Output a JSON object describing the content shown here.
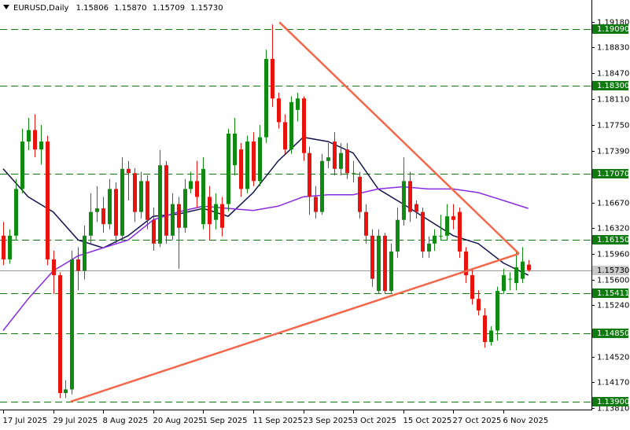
{
  "chart_data": {
    "type": "candlestick",
    "symbol": "EURUSD,Daily",
    "quote": [
      1.15806,
      {
        "value": 1.1587,
        "label": "1.15870"
      },
      1.15709,
      {
        "value": 1.1573,
        "label": "1.15730"
      }
    ],
    "bull_color": "#118a11",
    "bear_color": "#e8130c",
    "ohlc": {
      "open": [
        1.1621,
        1.1588,
        1.1621,
        1.1686,
        1.1752,
        1.1768,
        1.1741,
        1.1752,
        1.1588,
        1.1566,
        1.1402,
        1.1407,
        1.1588,
        1.1572,
        1.1621,
        1.1654,
        1.1659,
        1.1637,
        1.1686,
        1.1621,
        1.1714,
        1.1708,
        1.1654,
        1.1697,
        1.1643,
        1.161,
        1.1719,
        1.1621,
        1.1665,
        1.1632,
        1.1686,
        1.1697,
        1.1637,
        1.1675,
        1.1643,
        1.1665,
        1.1665,
        1.1719,
        1.1741,
        1.1686,
        1.1752,
        1.1697,
        1.1758,
        1.1867,
        1.1812,
        1.1779,
        1.1741,
        1.1796,
        1.1812,
        1.1736,
        1.1675,
        1.1654,
        1.1725,
        1.1752,
        1.1714,
        1.1741,
        1.1708,
        1.1703,
        1.1654,
        1.1621,
        1.1544,
        1.1621,
        1.1544,
        1.1599,
        1.1643,
        1.1697,
        1.1665,
        1.1654,
        1.1599,
        1.161,
        1.1621,
        1.1621,
        1.1648,
        1.1654,
        1.1599,
        1.1566,
        1.1533,
        1.151,
        1.1473,
        1.1489,
        1.1544,
        1.1561,
        1.1555,
        1.1561,
        1.15806
      ],
      "high": [
        1.164,
        1.163,
        1.17,
        1.177,
        1.1785,
        1.179,
        1.1775,
        1.176,
        1.16,
        1.157,
        1.142,
        1.16,
        1.1605,
        1.1635,
        1.168,
        1.169,
        1.1675,
        1.17,
        1.1695,
        1.173,
        1.1725,
        1.1715,
        1.171,
        1.1705,
        1.166,
        1.174,
        1.1725,
        1.168,
        1.1675,
        1.17,
        1.171,
        1.1725,
        1.173,
        1.169,
        1.168,
        1.1675,
        1.177,
        1.1785,
        1.175,
        1.176,
        1.1765,
        1.1775,
        1.188,
        1.1915,
        1.182,
        1.179,
        1.1815,
        1.182,
        1.1815,
        1.1745,
        1.169,
        1.1735,
        1.175,
        1.1765,
        1.175,
        1.175,
        1.1725,
        1.171,
        1.1665,
        1.163,
        1.163,
        1.1625,
        1.161,
        1.166,
        1.173,
        1.171,
        1.167,
        1.166,
        1.162,
        1.163,
        1.165,
        1.1665,
        1.1665,
        1.166,
        1.1605,
        1.1575,
        1.1545,
        1.152,
        1.1495,
        1.155,
        1.1575,
        1.157,
        1.16,
        1.1605,
        1.1587
      ],
      "low": [
        1.158,
        1.1582,
        1.1615,
        1.168,
        1.174,
        1.173,
        1.172,
        1.158,
        1.154,
        1.1395,
        1.1395,
        1.14,
        1.1545,
        1.156,
        1.161,
        1.164,
        1.1625,
        1.163,
        1.161,
        1.1615,
        1.167,
        1.164,
        1.1645,
        1.163,
        1.16,
        1.1605,
        1.161,
        1.1615,
        1.1575,
        1.1625,
        1.168,
        1.166,
        1.163,
        1.1615,
        1.163,
        1.162,
        1.1655,
        1.1705,
        1.1675,
        1.168,
        1.169,
        1.169,
        1.175,
        1.18,
        1.177,
        1.1735,
        1.1735,
        1.178,
        1.1725,
        1.165,
        1.1645,
        1.165,
        1.1715,
        1.1705,
        1.1705,
        1.17,
        1.1695,
        1.1645,
        1.161,
        1.155,
        1.154,
        1.154,
        1.154,
        1.159,
        1.1635,
        1.164,
        1.1645,
        1.159,
        1.159,
        1.16,
        1.1615,
        1.1615,
        1.163,
        1.159,
        1.1555,
        1.1525,
        1.151,
        1.1465,
        1.1468,
        1.1475,
        1.154,
        1.1545,
        1.1545,
        1.1555,
        1.15709
      ],
      "close": [
        1.1588,
        1.1621,
        1.1686,
        1.1752,
        1.1768,
        1.1741,
        1.1752,
        1.1588,
        1.1566,
        1.1402,
        1.1407,
        1.1588,
        1.1572,
        1.1621,
        1.1654,
        1.1659,
        1.1637,
        1.1686,
        1.1621,
        1.1714,
        1.1708,
        1.1654,
        1.1697,
        1.1643,
        1.161,
        1.1719,
        1.1621,
        1.1665,
        1.1632,
        1.1686,
        1.1697,
        1.1675,
        1.1714,
        1.1637,
        1.1665,
        1.1632,
        1.1763,
        1.1763,
        1.1686,
        1.1752,
        1.1697,
        1.1758,
        1.1867,
        1.1812,
        1.1779,
        1.1741,
        1.1807,
        1.1812,
        1.1736,
        1.1675,
        1.1654,
        1.1725,
        1.173,
        1.1714,
        1.1736,
        1.1708,
        1.1708,
        1.1654,
        1.1621,
        1.1561,
        1.1621,
        1.1544,
        1.1599,
        1.1643,
        1.1697,
        1.1654,
        1.1654,
        1.1599,
        1.161,
        1.1621,
        1.1621,
        1.1648,
        1.1643,
        1.1599,
        1.1566,
        1.1533,
        1.1517,
        1.1473,
        1.1489,
        1.1544,
        1.1566,
        1.1561,
        1.1577,
        1.1585,
        1.1573
      ]
    },
    "moving_averages": [
      {
        "color": "#14144e",
        "x": [
          0,
          4,
          8,
          12,
          16,
          20,
          24,
          28,
          32,
          36,
          40,
          44,
          48,
          52,
          56,
          60,
          64,
          68,
          72,
          76,
          80,
          84
        ],
        "values": [
          1.1714,
          1.1675,
          1.1654,
          1.1615,
          1.1604,
          1.1621,
          1.1648,
          1.1651,
          1.1659,
          1.1648,
          1.1681,
          1.1725,
          1.1758,
          1.1752,
          1.1736,
          1.1686,
          1.1665,
          1.1643,
          1.1621,
          1.161,
          1.1583,
          1.1566
        ]
      },
      {
        "color": "#8a2be2",
        "x": [
          0,
          4,
          8,
          12,
          16,
          20,
          24,
          28,
          32,
          36,
          40,
          44,
          48,
          52,
          56,
          60,
          64,
          68,
          72,
          76,
          80,
          84
        ],
        "values": [
          1.1489,
          1.1533,
          1.1572,
          1.1593,
          1.1604,
          1.1615,
          1.1643,
          1.1654,
          1.1662,
          1.1659,
          1.1656,
          1.1662,
          1.1675,
          1.1678,
          1.1678,
          1.1686,
          1.1689,
          1.1686,
          1.1686,
          1.1681,
          1.167,
          1.1659
        ]
      }
    ],
    "trendlines": [
      {
        "color": "#f4674a",
        "x": [
          44.2,
          82.5
        ],
        "values": [
          1.1918,
          1.1596
        ]
      },
      {
        "color": "#f4674a",
        "x": [
          10.8,
          82.5
        ],
        "values": [
          1.139,
          1.1596
        ]
      }
    ],
    "levels": [
      {
        "value": 1.1909,
        "label": "1.19090"
      },
      {
        "value": 1.183,
        "label": "1.18300"
      },
      {
        "value": 1.1707,
        "label": "1.17070"
      },
      {
        "value": 1.1615,
        "label": "1.16150"
      },
      {
        "value": 1.15411,
        "label": "1.15411"
      },
      {
        "value": 1.1485,
        "label": "1.14850"
      },
      {
        "value": 1.139,
        "label": "1.13900"
      }
    ],
    "level_color": "#0f7a0f",
    "current_price": {
      "value": 1.1573,
      "label": "1.15730"
    },
    "xlim": [
      -0.5,
      94.1
    ],
    "ylim": [
      1.1379,
      1.1949
    ],
    "xticks": [
      {
        "value": 0,
        "label": "17 Jul 2025"
      },
      {
        "value": 8,
        "label": "29 Jul 2025"
      },
      {
        "value": 16,
        "label": "8 Aug 2025"
      },
      {
        "value": 24,
        "label": "20 Aug 2025"
      },
      {
        "value": 32,
        "label": "1 Sep 2025"
      },
      {
        "value": 40,
        "label": "11 Sep 2025"
      },
      {
        "value": 48,
        "label": "23 Sep 2025"
      },
      {
        "value": 56,
        "label": "3 Oct 2025"
      },
      {
        "value": 64,
        "label": "15 Oct 2025"
      },
      {
        "value": 72,
        "label": "27 Oct 2025"
      },
      {
        "value": 80,
        "label": "6 Nov 2025"
      }
    ],
    "yticks": [
      {
        "value": 1.1918,
        "label": "1.19180"
      },
      {
        "value": 1.1883,
        "label": "1.18830"
      },
      {
        "value": 1.1847,
        "label": "1.18470"
      },
      {
        "value": 1.1811,
        "label": "1.18110"
      },
      {
        "value": 1.1775,
        "label": "1.17750"
      },
      {
        "value": 1.1739,
        "label": "1.17390"
      },
      {
        "value": 1.1667,
        "label": "1.16670"
      },
      {
        "value": 1.1632,
        "label": "1.16320"
      },
      {
        "value": 1.1596,
        "label": "1.15960"
      },
      {
        "value": 1.156,
        "label": "1.15600"
      },
      {
        "value": 1.1524,
        "label": "1.15240"
      },
      {
        "value": 1.1452,
        "label": "1.14520"
      },
      {
        "value": 1.1417,
        "label": "1.14170"
      },
      {
        "value": 1.1381,
        "label": "1.13810"
      }
    ]
  }
}
